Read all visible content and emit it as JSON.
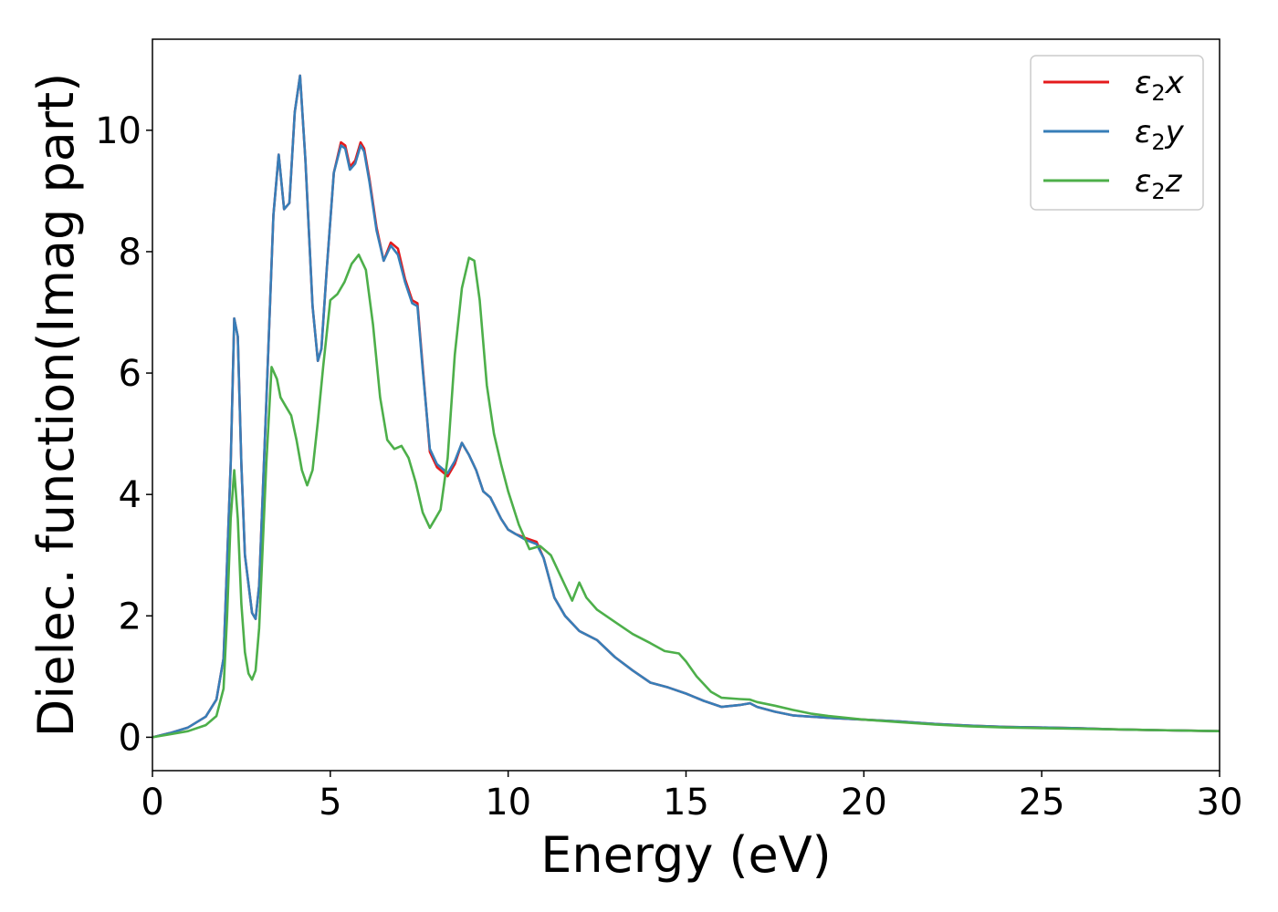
{
  "chart_data": {
    "type": "line",
    "title": "",
    "xlabel": "Energy (eV)",
    "ylabel": "Dielec. function(Imag part)",
    "xlim": [
      0,
      30
    ],
    "ylim": [
      -0.55,
      11.5
    ],
    "xticks": [
      0,
      5,
      10,
      15,
      20,
      25,
      30
    ],
    "xtick_labels": [
      "0",
      "5",
      "10",
      "15",
      "20",
      "25",
      "30"
    ],
    "yticks": [
      0,
      2,
      4,
      6,
      8,
      10
    ],
    "ytick_labels": [
      "0",
      "2",
      "4",
      "6",
      "8",
      "10"
    ],
    "grid": false,
    "legend_position": "top-right",
    "series": [
      {
        "name": "ε2x",
        "legend_base": "ε",
        "legend_sub": "2",
        "legend_suffix": "x",
        "color": "#e41a1c",
        "x": [
          0,
          0.5,
          1.0,
          1.5,
          1.8,
          2.0,
          2.2,
          2.3,
          2.4,
          2.5,
          2.6,
          2.8,
          2.9,
          3.0,
          3.2,
          3.4,
          3.55,
          3.7,
          3.85,
          4.0,
          4.15,
          4.3,
          4.5,
          4.65,
          4.75,
          4.9,
          5.1,
          5.3,
          5.42,
          5.55,
          5.7,
          5.85,
          5.95,
          6.1,
          6.3,
          6.5,
          6.7,
          6.9,
          7.1,
          7.3,
          7.45,
          7.6,
          7.8,
          8.0,
          8.3,
          8.5,
          8.7,
          8.9,
          9.1,
          9.3,
          9.5,
          9.8,
          10.0,
          10.2,
          10.5,
          10.8,
          11.0,
          11.3,
          11.6,
          12.0,
          12.5,
          13.0,
          13.5,
          14.0,
          14.5,
          15.0,
          15.5,
          16.0,
          16.5,
          16.8,
          17.0,
          17.5,
          18.0,
          19.0,
          20.0,
          21.0,
          22.0,
          23.0,
          24.0,
          25.0,
          26.0,
          27.0,
          28.0,
          29.0,
          30.0
        ],
        "y": [
          0,
          0.07,
          0.16,
          0.34,
          0.62,
          1.3,
          4.5,
          6.9,
          6.6,
          4.5,
          3.0,
          2.05,
          1.95,
          2.5,
          5.5,
          8.6,
          9.6,
          8.7,
          8.8,
          10.3,
          10.9,
          9.5,
          7.1,
          6.2,
          6.4,
          7.7,
          9.3,
          9.8,
          9.75,
          9.4,
          9.5,
          9.8,
          9.7,
          9.2,
          8.4,
          7.85,
          8.15,
          8.05,
          7.55,
          7.2,
          7.15,
          6.1,
          4.7,
          4.45,
          4.3,
          4.5,
          4.85,
          4.65,
          4.4,
          4.05,
          3.95,
          3.6,
          3.42,
          3.35,
          3.28,
          3.22,
          2.95,
          2.3,
          2.0,
          1.75,
          1.6,
          1.32,
          1.1,
          0.9,
          0.82,
          0.72,
          0.6,
          0.5,
          0.53,
          0.56,
          0.5,
          0.42,
          0.36,
          0.32,
          0.29,
          0.26,
          0.22,
          0.19,
          0.17,
          0.16,
          0.15,
          0.13,
          0.12,
          0.11,
          0.1
        ]
      },
      {
        "name": "ε2y",
        "legend_base": "ε",
        "legend_sub": "2",
        "legend_suffix": "y",
        "color": "#377eb8",
        "x": [
          0,
          0.5,
          1.0,
          1.5,
          1.8,
          2.0,
          2.2,
          2.3,
          2.4,
          2.5,
          2.6,
          2.8,
          2.9,
          3.0,
          3.2,
          3.4,
          3.55,
          3.7,
          3.85,
          4.0,
          4.15,
          4.3,
          4.5,
          4.65,
          4.75,
          4.9,
          5.1,
          5.3,
          5.42,
          5.55,
          5.7,
          5.85,
          5.95,
          6.1,
          6.3,
          6.5,
          6.7,
          6.9,
          7.1,
          7.3,
          7.45,
          7.6,
          7.8,
          8.0,
          8.3,
          8.5,
          8.7,
          8.9,
          9.1,
          9.3,
          9.5,
          9.8,
          10.0,
          10.2,
          10.5,
          10.8,
          11.0,
          11.3,
          11.6,
          12.0,
          12.5,
          13.0,
          13.5,
          14.0,
          14.5,
          15.0,
          15.5,
          16.0,
          16.5,
          16.8,
          17.0,
          17.5,
          18.0,
          19.0,
          20.0,
          21.0,
          22.0,
          23.0,
          24.0,
          25.0,
          26.0,
          27.0,
          28.0,
          29.0,
          30.0
        ],
        "y": [
          0,
          0.07,
          0.16,
          0.34,
          0.62,
          1.3,
          4.5,
          6.9,
          6.6,
          4.5,
          3.0,
          2.05,
          1.95,
          2.5,
          5.5,
          8.6,
          9.6,
          8.7,
          8.8,
          10.3,
          10.9,
          9.5,
          7.1,
          6.2,
          6.4,
          7.7,
          9.3,
          9.75,
          9.7,
          9.35,
          9.45,
          9.75,
          9.65,
          9.15,
          8.35,
          7.85,
          8.1,
          7.95,
          7.5,
          7.15,
          7.1,
          6.05,
          4.75,
          4.5,
          4.35,
          4.55,
          4.85,
          4.65,
          4.4,
          4.05,
          3.95,
          3.6,
          3.42,
          3.35,
          3.25,
          3.18,
          2.95,
          2.3,
          2.0,
          1.75,
          1.6,
          1.32,
          1.1,
          0.9,
          0.82,
          0.72,
          0.6,
          0.5,
          0.53,
          0.56,
          0.5,
          0.42,
          0.36,
          0.32,
          0.29,
          0.26,
          0.22,
          0.19,
          0.17,
          0.16,
          0.15,
          0.13,
          0.12,
          0.11,
          0.1
        ]
      },
      {
        "name": "ε2z",
        "legend_base": "ε",
        "legend_sub": "2",
        "legend_suffix": "z",
        "color": "#4daf4a",
        "x": [
          0,
          0.5,
          1.0,
          1.5,
          1.8,
          2.0,
          2.1,
          2.2,
          2.3,
          2.4,
          2.5,
          2.6,
          2.7,
          2.8,
          2.9,
          3.0,
          3.2,
          3.35,
          3.5,
          3.6,
          3.75,
          3.9,
          4.05,
          4.2,
          4.35,
          4.5,
          4.65,
          4.8,
          5.0,
          5.2,
          5.4,
          5.6,
          5.8,
          6.0,
          6.2,
          6.4,
          6.6,
          6.8,
          7.0,
          7.2,
          7.4,
          7.6,
          7.8,
          7.95,
          8.1,
          8.3,
          8.5,
          8.7,
          8.9,
          9.05,
          9.2,
          9.4,
          9.6,
          9.8,
          10.0,
          10.3,
          10.6,
          10.9,
          11.2,
          11.6,
          11.8,
          12.0,
          12.2,
          12.5,
          13.0,
          13.5,
          14.0,
          14.4,
          14.8,
          15.0,
          15.3,
          15.7,
          16.0,
          16.5,
          16.8,
          17.0,
          17.5,
          18.0,
          18.5,
          19.0,
          19.5,
          20.0,
          21.0,
          22.0,
          23.0,
          24.0,
          25.0,
          26.0,
          27.0,
          28.0,
          29.0,
          30.0
        ],
        "y": [
          0,
          0.05,
          0.1,
          0.2,
          0.35,
          0.8,
          2.0,
          3.6,
          4.4,
          3.6,
          2.2,
          1.4,
          1.05,
          0.95,
          1.1,
          1.8,
          4.5,
          6.1,
          5.9,
          5.6,
          5.45,
          5.3,
          4.9,
          4.4,
          4.15,
          4.4,
          5.2,
          6.1,
          7.2,
          7.3,
          7.5,
          7.8,
          7.95,
          7.7,
          6.8,
          5.6,
          4.9,
          4.75,
          4.8,
          4.6,
          4.2,
          3.7,
          3.45,
          3.6,
          3.75,
          4.6,
          6.3,
          7.4,
          7.9,
          7.85,
          7.2,
          5.8,
          5.0,
          4.5,
          4.05,
          3.5,
          3.1,
          3.15,
          3.0,
          2.5,
          2.25,
          2.55,
          2.3,
          2.1,
          1.9,
          1.7,
          1.55,
          1.42,
          1.38,
          1.25,
          1.0,
          0.75,
          0.65,
          0.63,
          0.62,
          0.58,
          0.52,
          0.45,
          0.39,
          0.35,
          0.32,
          0.29,
          0.25,
          0.21,
          0.18,
          0.16,
          0.15,
          0.14,
          0.13,
          0.12,
          0.11,
          0.1
        ]
      }
    ]
  }
}
